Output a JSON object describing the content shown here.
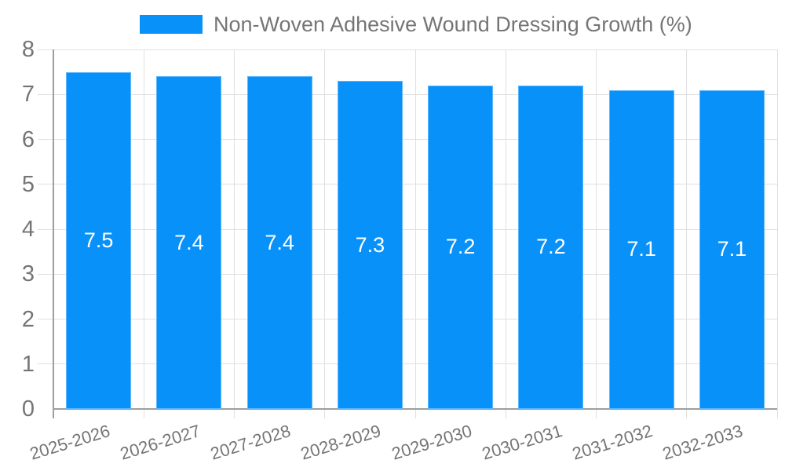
{
  "chart_data": {
    "type": "bar",
    "title": "Non-Woven Adhesive Wound Dressing Growth (%)",
    "xlabel": "",
    "ylabel": "",
    "categories": [
      "2025-2026",
      "2026-2027",
      "2027-2028",
      "2028-2029",
      "2029-2030",
      "2030-2031",
      "2031-2032",
      "2032-2033"
    ],
    "series": [
      {
        "name": "Non-Woven Adhesive Wound Dressing Growth (%)",
        "values": [
          7.5,
          7.4,
          7.4,
          7.3,
          7.2,
          7.2,
          7.1,
          7.1
        ]
      }
    ],
    "bar_value_labels": [
      "7.5",
      "7.4",
      "7.4",
      "7.3",
      "7.2",
      "7.2",
      "7.1",
      "7.1"
    ],
    "ylim": [
      0,
      8
    ],
    "yticks": [
      0,
      1,
      2,
      3,
      4,
      5,
      6,
      7,
      8
    ],
    "grid": true,
    "legend_position": "top",
    "x_label_rotation_deg": -17,
    "colors": {
      "bar": "#0991fa",
      "bar_label": "#ffffff",
      "grid": "#e0e0e0",
      "axis": "#9e9e9e",
      "text": "#757575",
      "background": "#ffffff"
    }
  }
}
